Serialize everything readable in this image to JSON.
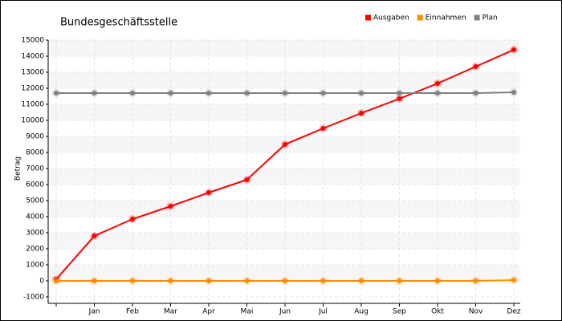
{
  "chart_data": {
    "type": "line",
    "title": "Bundesgeschäftsstelle",
    "y_label": "Betrag",
    "categories": [
      null,
      "Jan",
      "Feb",
      "Mar",
      "Apr",
      "Mai",
      "Jun",
      "Jul",
      "Aug",
      "Sep",
      "Okt",
      "Nov",
      "Dez"
    ],
    "series": [
      {
        "name": "Ausgaben",
        "color": "#ff0000",
        "values": [
          100,
          2800,
          3850,
          4650,
          5500,
          6300,
          8500,
          9500,
          10450,
          11350,
          12300,
          13350,
          14400
        ]
      },
      {
        "name": "Einnahmen",
        "color": "#ff8c00",
        "values": [
          0,
          0,
          0,
          0,
          0,
          0,
          0,
          0,
          0,
          0,
          0,
          0,
          50
        ]
      },
      {
        "name": "Plan",
        "color": "#808080",
        "values": [
          11700,
          11700,
          11700,
          11700,
          11700,
          11700,
          11700,
          11700,
          11700,
          11700,
          11700,
          11700,
          11750
        ]
      }
    ],
    "ylim": [
      -1000,
      15000
    ],
    "yticks": [
      -1000,
      0,
      1000,
      2000,
      3000,
      4000,
      5000,
      6000,
      7000,
      8000,
      9000,
      10000,
      11000,
      12000,
      13000,
      14000,
      15000
    ],
    "grid": true,
    "legend": "top-right"
  }
}
